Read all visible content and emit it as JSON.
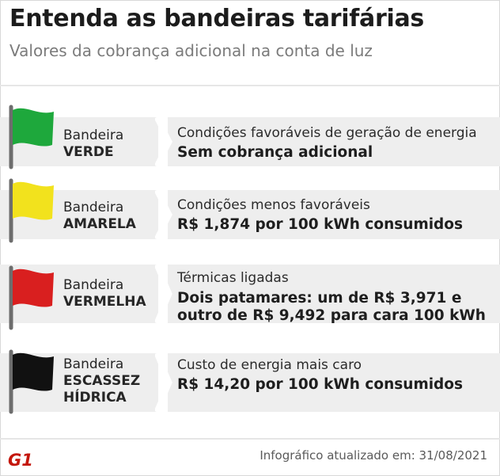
{
  "header": {
    "title": "Entenda as bandeiras tarifárias",
    "subtitle": "Valores da cobrança adicional na conta de luz"
  },
  "flags": [
    {
      "prefix": "Bandeira",
      "name": "VERDE",
      "name_line2": "",
      "color": "#1ea83c",
      "condition": "Condições favoráveis de geração de energia",
      "value": "Sem cobrança adicional",
      "value_line2": ""
    },
    {
      "prefix": "Bandeira",
      "name": "AMARELA",
      "name_line2": "",
      "color": "#f2e21d",
      "condition": "Condições menos favoráveis",
      "value": "R$ 1,874 por 100 kWh consumidos",
      "value_line2": ""
    },
    {
      "prefix": "Bandeira",
      "name": "VERMELHA",
      "name_line2": "",
      "color": "#d91f1f",
      "condition": "Térmicas ligadas",
      "value": "Dois patamares: um de R$ 3,971 e",
      "value_line2": "outro de R$ 9,492 para cara 100 kWh"
    },
    {
      "prefix": "Bandeira",
      "name": "ESCASSEZ",
      "name_line2": "HÍDRICA",
      "color": "#111111",
      "condition": "Custo de energia mais caro",
      "value": "R$ 14,20 por 100 kWh consumidos",
      "value_line2": ""
    }
  ],
  "footer": {
    "logo_text": "G1",
    "logo_color": "#c4170c",
    "updated": "Infográfico atualizado em: 31/08/2021"
  },
  "icons": {
    "flag": "flag-icon",
    "logo": "g1-logo"
  }
}
